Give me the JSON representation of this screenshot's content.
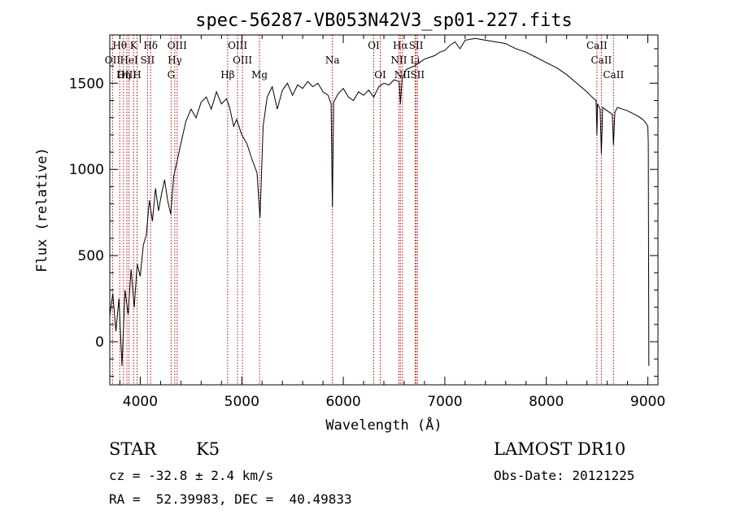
{
  "chart_data": {
    "type": "line",
    "title": "spec-56287-VB053N42V3_sp01-227.fits",
    "xlabel": "Wavelength (Å)",
    "ylabel": "Flux (relative)",
    "xlim": [
      3700,
      9100
    ],
    "ylim": [
      -250,
      1780
    ],
    "x_ticks": [
      4000,
      5000,
      6000,
      7000,
      8000,
      9000
    ],
    "y_ticks": [
      0,
      500,
      1000,
      1500
    ],
    "grid": false,
    "legend": "none",
    "series": [
      {
        "color": "#000000",
        "points": [
          [
            3700,
            150
          ],
          [
            3730,
            280
          ],
          [
            3760,
            60
          ],
          [
            3790,
            250
          ],
          [
            3820,
            -140
          ],
          [
            3850,
            300
          ],
          [
            3880,
            160
          ],
          [
            3910,
            420
          ],
          [
            3940,
            200
          ],
          [
            3970,
            450
          ],
          [
            4000,
            380
          ],
          [
            4030,
            560
          ],
          [
            4060,
            620
          ],
          [
            4090,
            820
          ],
          [
            4120,
            700
          ],
          [
            4150,
            890
          ],
          [
            4180,
            760
          ],
          [
            4210,
            860
          ],
          [
            4240,
            940
          ],
          [
            4270,
            820
          ],
          [
            4300,
            740
          ],
          [
            4330,
            960
          ],
          [
            4360,
            1040
          ],
          [
            4400,
            1150
          ],
          [
            4450,
            1280
          ],
          [
            4500,
            1350
          ],
          [
            4550,
            1300
          ],
          [
            4600,
            1390
          ],
          [
            4650,
            1420
          ],
          [
            4700,
            1350
          ],
          [
            4750,
            1450
          ],
          [
            4800,
            1380
          ],
          [
            4850,
            1410
          ],
          [
            4880,
            1360
          ],
          [
            4920,
            1250
          ],
          [
            4950,
            1290
          ],
          [
            5000,
            1200
          ],
          [
            5050,
            1150
          ],
          [
            5100,
            1060
          ],
          [
            5150,
            980
          ],
          [
            5180,
            720
          ],
          [
            5210,
            1250
          ],
          [
            5250,
            1420
          ],
          [
            5300,
            1480
          ],
          [
            5350,
            1350
          ],
          [
            5400,
            1460
          ],
          [
            5450,
            1500
          ],
          [
            5500,
            1430
          ],
          [
            5550,
            1490
          ],
          [
            5600,
            1470
          ],
          [
            5650,
            1510
          ],
          [
            5700,
            1480
          ],
          [
            5750,
            1500
          ],
          [
            5800,
            1450
          ],
          [
            5850,
            1430
          ],
          [
            5880,
            1380
          ],
          [
            5893,
            780
          ],
          [
            5905,
            1390
          ],
          [
            5950,
            1440
          ],
          [
            6000,
            1470
          ],
          [
            6050,
            1420
          ],
          [
            6100,
            1400
          ],
          [
            6150,
            1450
          ],
          [
            6200,
            1430
          ],
          [
            6250,
            1460
          ],
          [
            6300,
            1420
          ],
          [
            6350,
            1480
          ],
          [
            6400,
            1500
          ],
          [
            6450,
            1490
          ],
          [
            6500,
            1520
          ],
          [
            6550,
            1510
          ],
          [
            6563,
            1380
          ],
          [
            6580,
            1530
          ],
          [
            6620,
            1580
          ],
          [
            6700,
            1600
          ],
          [
            6750,
            1620
          ],
          [
            6800,
            1640
          ],
          [
            6850,
            1650
          ],
          [
            6900,
            1660
          ],
          [
            6950,
            1680
          ],
          [
            7000,
            1690
          ],
          [
            7050,
            1720
          ],
          [
            7100,
            1740
          ],
          [
            7150,
            1700
          ],
          [
            7200,
            1750
          ],
          [
            7300,
            1760
          ],
          [
            7400,
            1750
          ],
          [
            7500,
            1740
          ],
          [
            7600,
            1730
          ],
          [
            7700,
            1700
          ],
          [
            7800,
            1680
          ],
          [
            7900,
            1650
          ],
          [
            8000,
            1620
          ],
          [
            8100,
            1590
          ],
          [
            8200,
            1550
          ],
          [
            8300,
            1500
          ],
          [
            8400,
            1450
          ],
          [
            8450,
            1420
          ],
          [
            8490,
            1400
          ],
          [
            8498,
            1200
          ],
          [
            8505,
            1380
          ],
          [
            8530,
            1350
          ],
          [
            8542,
            1090
          ],
          [
            8555,
            1360
          ],
          [
            8600,
            1340
          ],
          [
            8650,
            1320
          ],
          [
            8662,
            1140
          ],
          [
            8675,
            1330
          ],
          [
            8700,
            1360
          ],
          [
            8800,
            1340
          ],
          [
            8900,
            1310
          ],
          [
            8950,
            1290
          ],
          [
            8980,
            1270
          ],
          [
            9000,
            1250
          ],
          [
            9005,
            1150
          ],
          [
            9010,
            -140
          ]
        ]
      }
    ],
    "line_markers": [
      {
        "label": "Hθ",
        "wavelength": 3798,
        "row": 0
      },
      {
        "label": "K",
        "wavelength": 3934,
        "row": 0
      },
      {
        "label": "Hδ",
        "wavelength": 4102,
        "row": 0
      },
      {
        "label": "OIII",
        "wavelength": 4363,
        "row": 0
      },
      {
        "label": "OIII",
        "wavelength": 4959,
        "row": 0
      },
      {
        "label": "OI",
        "wavelength": 6300,
        "row": 0
      },
      {
        "label": "Hα",
        "wavelength": 6563,
        "row": 0
      },
      {
        "label": "SII",
        "wavelength": 6717,
        "row": 0
      },
      {
        "label": "CaII",
        "wavelength": 8498,
        "row": 0
      },
      {
        "label": "OII",
        "wavelength": 3727,
        "row": 1
      },
      {
        "label": "HeI",
        "wavelength": 3889,
        "row": 1
      },
      {
        "label": "SII",
        "wavelength": 4072,
        "row": 1
      },
      {
        "label": "Hγ",
        "wavelength": 4340,
        "row": 1
      },
      {
        "label": "OIII",
        "wavelength": 5007,
        "row": 1
      },
      {
        "label": "Na",
        "wavelength": 5893,
        "row": 1
      },
      {
        "label": "NII",
        "wavelength": 6548,
        "row": 1
      },
      {
        "label": "Li",
        "wavelength": 6708,
        "row": 1
      },
      {
        "label": "CaII",
        "wavelength": 8542,
        "row": 1
      },
      {
        "label": "OIII",
        "wavelength": 3869,
        "row": 2
      },
      {
        "label": "Hη",
        "wavelength": 3835,
        "row": 2
      },
      {
        "label": "H",
        "wavelength": 3968,
        "row": 2
      },
      {
        "label": "G",
        "wavelength": 4304,
        "row": 2
      },
      {
        "label": "Hβ",
        "wavelength": 4861,
        "row": 2
      },
      {
        "label": "Mg",
        "wavelength": 5175,
        "row": 2
      },
      {
        "label": "OI",
        "wavelength": 6364,
        "row": 2
      },
      {
        "label": "NII",
        "wavelength": 6583,
        "row": 2
      },
      {
        "label": "SII",
        "wavelength": 6731,
        "row": 2
      },
      {
        "label": "CaII",
        "wavelength": 8662,
        "row": 2
      }
    ],
    "marker_color": "#cc0000"
  },
  "info": {
    "object_class": "STAR",
    "subclass": "K5",
    "survey": "LAMOST DR10",
    "cz": "cz = -32.8 ± 2.4 km/s",
    "obs_date": "Obs-Date: 20121225",
    "coords": "RA =  52.39983, DEC =  40.49833"
  }
}
